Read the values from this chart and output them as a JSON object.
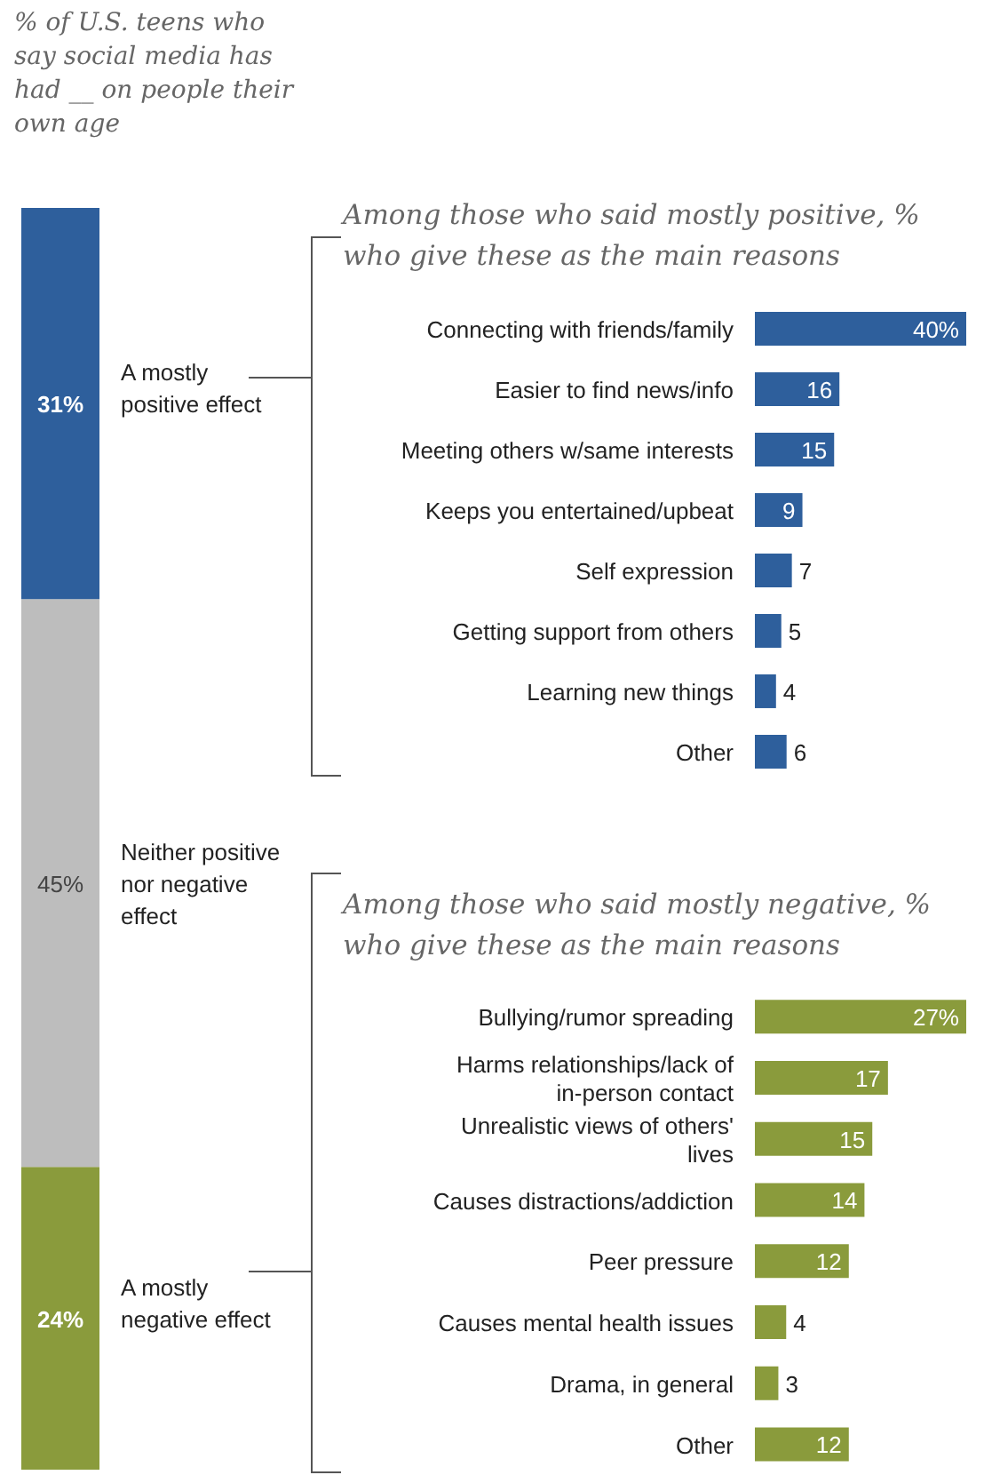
{
  "chart_data": [
    {
      "type": "bar",
      "stacked": true,
      "title": "% of U.S. teens who say social media has had __ on people their own age",
      "categories": [
        null
      ],
      "series": [
        {
          "name": "A mostly negative effect",
          "color": "#8a9b3c",
          "values": [
            24
          ],
          "value_labels": [
            "24%"
          ]
        },
        {
          "name": "Neither positive nor negative effect",
          "color": "#bdbdbd",
          "values": [
            45
          ],
          "value_labels": [
            "45%"
          ]
        },
        {
          "name": "A mostly positive effect",
          "color": "#2e5f9c",
          "values": [
            31
          ],
          "value_labels": [
            "31%"
          ]
        }
      ]
    },
    {
      "type": "bar",
      "orientation": "horizontal",
      "title": "Among those who said mostly positive, % who give these as the main reasons",
      "color": "#2e5f9c",
      "categories": [
        "Connecting with friends/family",
        "Easier to find news/info",
        "Meeting others w/same interests",
        "Keeps you entertained/upbeat",
        "Self expression",
        "Getting support from others",
        "Learning new things",
        "Other"
      ],
      "values": [
        40,
        16,
        15,
        9,
        7,
        5,
        4,
        6
      ],
      "value_labels": [
        "40%",
        "16",
        "15",
        "9",
        "7",
        "5",
        "4",
        "6"
      ]
    },
    {
      "type": "bar",
      "orientation": "horizontal",
      "title": "Among those who said mostly negative, % who give these as the main reasons",
      "color": "#8a9b3c",
      "categories": [
        "Bullying/rumor spreading",
        "Harms relationships/lack of in-person contact",
        "Unrealistic views of others' lives",
        "Causes distractions/addiction",
        "Peer pressure",
        "Causes mental health issues",
        "Drama, in general",
        "Other"
      ],
      "values": [
        27,
        17,
        15,
        14,
        12,
        4,
        3,
        12
      ],
      "value_labels": [
        "27%",
        "17",
        "15",
        "14",
        "12",
        "4",
        "3",
        "12"
      ]
    }
  ]
}
